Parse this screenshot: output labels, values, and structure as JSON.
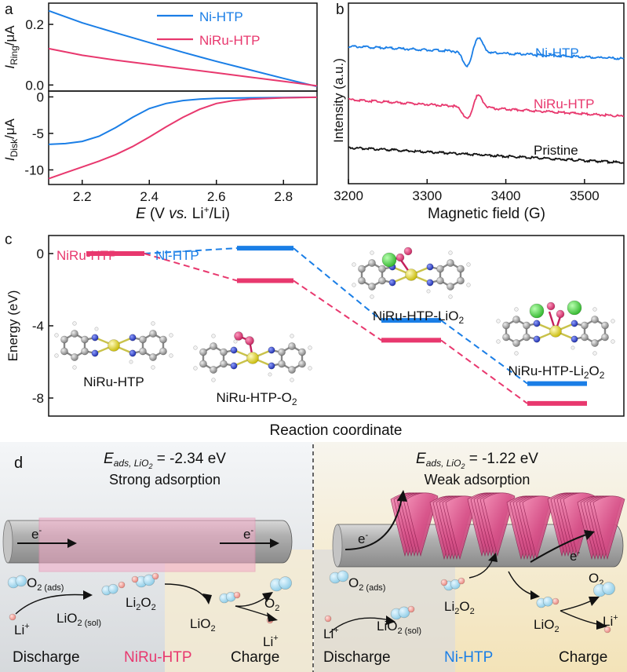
{
  "panels": {
    "a": "a",
    "b": "b",
    "c": "c",
    "d": "d"
  },
  "colors": {
    "ni": "#1a7ee6",
    "niru": "#e8386e",
    "pristine": "#111111"
  },
  "chart_data": [
    {
      "id": "a-ring",
      "type": "line",
      "ylabel_main": "I",
      "ylabel_sub": "Ring",
      "ylabel_unit": "/μA",
      "xlim": [
        2.1,
        2.9
      ],
      "ylim": [
        -0.02,
        0.27
      ],
      "yticks": [
        0.0,
        0.2
      ],
      "yticklabels": [
        "0.0",
        "0.2"
      ],
      "series": [
        {
          "name": "Ni-HTP",
          "color_key": "ni",
          "x": [
            2.1,
            2.2,
            2.3,
            2.4,
            2.5,
            2.6,
            2.7,
            2.8,
            2.9
          ],
          "y": [
            0.245,
            0.205,
            0.172,
            0.14,
            0.108,
            0.078,
            0.05,
            0.022,
            -0.005
          ]
        },
        {
          "name": "NiRu-HTP",
          "color_key": "niru",
          "x": [
            2.1,
            2.2,
            2.3,
            2.4,
            2.5,
            2.6,
            2.7,
            2.8,
            2.9
          ],
          "y": [
            0.12,
            0.098,
            0.082,
            0.068,
            0.054,
            0.04,
            0.026,
            0.012,
            -0.003
          ]
        }
      ]
    },
    {
      "id": "a-disk",
      "type": "line",
      "ylabel_main": "I",
      "ylabel_sub": "Disk",
      "ylabel_unit": "/μA",
      "xlabel_var": "E",
      "xlabel_rest": " (V ",
      "xlabel_vs": "vs.",
      "xlabel_li": " Li",
      "xlabel_sup": "+",
      "xlabel_end": "/Li)",
      "xlim": [
        2.1,
        2.9
      ],
      "ylim": [
        -12,
        0.8
      ],
      "xticks": [
        2.2,
        2.4,
        2.6,
        2.8
      ],
      "xticklabels": [
        "2.2",
        "2.4",
        "2.6",
        "2.8"
      ],
      "yticks": [
        0,
        -5,
        -10
      ],
      "yticklabels": [
        "0",
        "-5",
        "-10"
      ],
      "series": [
        {
          "name": "Ni-HTP",
          "color_key": "ni",
          "x": [
            2.1,
            2.15,
            2.2,
            2.25,
            2.3,
            2.35,
            2.4,
            2.45,
            2.5,
            2.55,
            2.6,
            2.7,
            2.8,
            2.9
          ],
          "y": [
            -6.5,
            -6.4,
            -6.1,
            -5.4,
            -4.2,
            -2.8,
            -1.6,
            -0.9,
            -0.5,
            -0.3,
            -0.2,
            -0.12,
            -0.08,
            -0.05
          ]
        },
        {
          "name": "NiRu-HTP",
          "color_key": "niru",
          "x": [
            2.1,
            2.15,
            2.2,
            2.25,
            2.3,
            2.35,
            2.4,
            2.45,
            2.5,
            2.55,
            2.6,
            2.65,
            2.7,
            2.8,
            2.9
          ],
          "y": [
            -11.2,
            -10.4,
            -9.6,
            -8.8,
            -7.9,
            -6.8,
            -5.5,
            -4.1,
            -2.8,
            -1.7,
            -0.9,
            -0.5,
            -0.3,
            -0.12,
            -0.05
          ]
        }
      ]
    },
    {
      "id": "b",
      "type": "line",
      "ylabel": "Intensity (a.u.)",
      "xlabel": "Magnetic field (G)",
      "xlim": [
        3200,
        3550
      ],
      "xticks": [
        3200,
        3300,
        3400,
        3500
      ],
      "xticklabels": [
        "3200",
        "3300",
        "3400",
        "3500"
      ],
      "series": [
        {
          "name": "Ni-HTP",
          "color_key": "ni"
        },
        {
          "name": "NiRu-HTP",
          "color_key": "niru"
        },
        {
          "name": "Pristine",
          "color_key": "pristine"
        }
      ]
    },
    {
      "id": "c",
      "type": "energy-diagram",
      "ylabel": "Energy (eV)",
      "xlabel": "Reaction coordinate",
      "ylim": [
        -9,
        1
      ],
      "yticks": [
        0,
        -4,
        -8
      ],
      "yticklabels": [
        "0",
        "-4",
        "-8"
      ],
      "legend": [
        {
          "name": "NiRu-HTP",
          "color_key": "niru"
        },
        {
          "name": "Ni-HTP",
          "color_key": "ni"
        }
      ],
      "steps": [
        {
          "label": "NiRu-HTP",
          "NiRu-HTP": 0.0,
          "Ni-HTP": null
        },
        {
          "label": "NiRu-HTP-O",
          "sub": "2",
          "NiRu-HTP": -1.5,
          "Ni-HTP": 0.3
        },
        {
          "label": "NiRu-HTP-LiO",
          "sub": "2",
          "NiRu-HTP": -4.8,
          "Ni-HTP": -3.7
        },
        {
          "label": "NiRu-HTP-Li",
          "sub": "2",
          "tail": "O",
          "tail_sub": "2",
          "NiRu-HTP": -8.3,
          "Ni-HTP": -7.2
        }
      ]
    }
  ],
  "panel_d": {
    "left": {
      "eads_var": "E",
      "eads_sub": "ads, LiO",
      "eads_sub2": "2",
      "eads_value": " = -2.34 eV",
      "caption": "Strong adsorption",
      "electron": "e",
      "electron_sup": "-",
      "o2ads": "O",
      "o2ads_sub": "2 (ads)",
      "lio2sol": "LiO",
      "lio2sol_sub": "2 (sol)",
      "li2o2": "Li",
      "li2o2_sub": "2",
      "li2o2_tail": "O",
      "li2o2_tail_sub": "2",
      "lio2": "LiO",
      "lio2_sub": "2",
      "o2": "O",
      "o2_sub": "2",
      "li": "Li",
      "li_sup": "+",
      "discharge": "Discharge",
      "material": "NiRu-HTP",
      "charge": "Charge"
    },
    "right": {
      "eads_var": "E",
      "eads_sub": "ads, LiO",
      "eads_sub2": "2",
      "eads_value": " = -1.22 eV",
      "caption": "Weak adsorption",
      "electron": "e",
      "electron_sup": "-",
      "o2ads": "O",
      "o2ads_sub": "2 (ads)",
      "lio2sol": "LiO",
      "lio2sol_sub": "2 (sol)",
      "li2o2": "Li",
      "li2o2_sub": "2",
      "li2o2_tail": "O",
      "li2o2_tail_sub": "2",
      "lio2": "LiO",
      "lio2_sub": "2",
      "o2": "O",
      "o2_sub": "2",
      "li": "Li",
      "li_sup": "+",
      "discharge": "Discharge",
      "material": "Ni-HTP",
      "charge": "Charge"
    }
  }
}
